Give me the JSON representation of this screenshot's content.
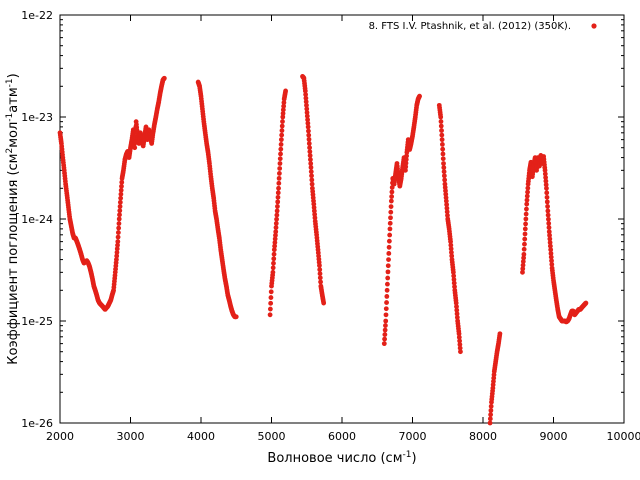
{
  "chart_data": {
    "type": "scatter",
    "title": "",
    "xlabel_text": "Волновое число (см",
    "xlabel_sup": "-1",
    "xlabel_end": ")",
    "ylabel_parts": [
      "Коэффициент поглощения (см",
      "2",
      "мол",
      "-1",
      "атм",
      "-1",
      ")"
    ],
    "xlim": [
      2000,
      10000
    ],
    "ylim": [
      1e-26,
      1e-22
    ],
    "yscale": "log",
    "grid": false,
    "legend_position": "top-right",
    "x_ticks": [
      "2000",
      "3000",
      "4000",
      "5000",
      "6000",
      "7000",
      "8000",
      "9000",
      "10000"
    ],
    "y_ticks": [
      "1e-26",
      "1e-25",
      "1e-24",
      "1e-23",
      "1e-22"
    ],
    "series": [
      {
        "name": "8. FTS I.V. Ptashnik, et al. (2012) (350K).",
        "color": "#e32119",
        "marker": "circle",
        "points": [
          [
            2000,
            7e-24
          ],
          [
            2020,
            5.5e-24
          ],
          [
            2040,
            4e-24
          ],
          [
            2060,
            3e-24
          ],
          [
            2080,
            2.2e-24
          ],
          [
            2100,
            1.7e-24
          ],
          [
            2120,
            1.3e-24
          ],
          [
            2140,
            1e-24
          ],
          [
            2160,
            8.5e-25
          ],
          [
            2180,
            7.2e-25
          ],
          [
            2200,
            6.5e-25
          ],
          [
            2220,
            6.5e-25
          ],
          [
            2240,
            6e-25
          ],
          [
            2260,
            5.5e-25
          ],
          [
            2280,
            5e-25
          ],
          [
            2300,
            4.5e-25
          ],
          [
            2320,
            4e-25
          ],
          [
            2340,
            3.7e-25
          ],
          [
            2360,
            3.8e-25
          ],
          [
            2380,
            3.9e-25
          ],
          [
            2400,
            3.7e-25
          ],
          [
            2420,
            3.4e-25
          ],
          [
            2440,
            3e-25
          ],
          [
            2460,
            2.6e-25
          ],
          [
            2480,
            2.2e-25
          ],
          [
            2500,
            2e-25
          ],
          [
            2520,
            1.8e-25
          ],
          [
            2540,
            1.6e-25
          ],
          [
            2560,
            1.5e-25
          ],
          [
            2580,
            1.45e-25
          ],
          [
            2600,
            1.4e-25
          ],
          [
            2620,
            1.35e-25
          ],
          [
            2640,
            1.3e-25
          ],
          [
            2660,
            1.35e-25
          ],
          [
            2680,
            1.4e-25
          ],
          [
            2700,
            1.5e-25
          ],
          [
            2720,
            1.6e-25
          ],
          [
            2740,
            1.8e-25
          ],
          [
            2760,
            2e-25
          ],
          [
            2780,
            2.8e-25
          ],
          [
            2800,
            4e-25
          ],
          [
            2820,
            6e-25
          ],
          [
            2840,
            1e-24
          ],
          [
            2860,
            1.6e-24
          ],
          [
            2880,
            2.5e-24
          ],
          [
            2900,
            3e-24
          ],
          [
            2920,
            3.8e-24
          ],
          [
            2940,
            4.3e-24
          ],
          [
            2960,
            4.6e-24
          ],
          [
            2980,
            4e-24
          ],
          [
            3000,
            5e-24
          ],
          [
            3020,
            6e-24
          ],
          [
            3040,
            7.5e-24
          ],
          [
            3060,
            5e-24
          ],
          [
            3080,
            9e-24
          ],
          [
            3100,
            6.5e-24
          ],
          [
            3120,
            5.5e-24
          ],
          [
            3140,
            7e-24
          ],
          [
            3160,
            6e-24
          ],
          [
            3180,
            5.2e-24
          ],
          [
            3200,
            6.5e-24
          ],
          [
            3220,
            8e-24
          ],
          [
            3240,
            6e-24
          ],
          [
            3260,
            7.5e-24
          ],
          [
            3280,
            6.5e-24
          ],
          [
            3300,
            5.5e-24
          ],
          [
            3320,
            7e-24
          ],
          [
            3340,
            8.5e-24
          ],
          [
            3360,
            1e-23
          ],
          [
            3380,
            1.2e-23
          ],
          [
            3400,
            1.4e-23
          ],
          [
            3420,
            1.7e-23
          ],
          [
            3440,
            2e-23
          ],
          [
            3460,
            2.3e-23
          ],
          [
            3480,
            2.4e-23
          ],
          [
            3960,
            2.2e-23
          ],
          [
            3980,
            2e-23
          ],
          [
            4000,
            1.6e-23
          ],
          [
            4020,
            1.2e-23
          ],
          [
            4040,
            9e-24
          ],
          [
            4060,
            7e-24
          ],
          [
            4080,
            5.5e-24
          ],
          [
            4100,
            4.5e-24
          ],
          [
            4120,
            3.5e-24
          ],
          [
            4140,
            2.6e-24
          ],
          [
            4160,
            2e-24
          ],
          [
            4180,
            1.6e-24
          ],
          [
            4200,
            1.2e-24
          ],
          [
            4220,
            1e-24
          ],
          [
            4240,
            8e-25
          ],
          [
            4260,
            6.5e-25
          ],
          [
            4280,
            5e-25
          ],
          [
            4300,
            4e-25
          ],
          [
            4320,
            3.2e-25
          ],
          [
            4340,
            2.6e-25
          ],
          [
            4360,
            2.2e-25
          ],
          [
            4380,
            1.8e-25
          ],
          [
            4400,
            1.6e-25
          ],
          [
            4420,
            1.4e-25
          ],
          [
            4440,
            1.25e-25
          ],
          [
            4460,
            1.15e-25
          ],
          [
            4480,
            1.1e-25
          ],
          [
            4500,
            1.1e-25
          ],
          [
            4980,
            1.15e-25
          ],
          [
            5000,
            2.2e-25
          ],
          [
            5020,
            3e-25
          ],
          [
            5040,
            5e-25
          ],
          [
            5060,
            7.5e-25
          ],
          [
            5080,
            1.2e-24
          ],
          [
            5100,
            2e-24
          ],
          [
            5120,
            3.5e-24
          ],
          [
            5140,
            6e-24
          ],
          [
            5160,
            1e-23
          ],
          [
            5180,
            1.5e-23
          ],
          [
            5200,
            1.8e-23
          ],
          [
            5440,
            2.5e-23
          ],
          [
            5460,
            2.4e-23
          ],
          [
            5480,
            1.8e-23
          ],
          [
            5500,
            1.2e-23
          ],
          [
            5520,
            8e-24
          ],
          [
            5540,
            5e-24
          ],
          [
            5560,
            3.2e-24
          ],
          [
            5580,
            2e-24
          ],
          [
            5600,
            1.4e-24
          ],
          [
            5620,
            9.5e-25
          ],
          [
            5640,
            7e-25
          ],
          [
            5660,
            5e-25
          ],
          [
            5680,
            3.5e-25
          ],
          [
            5700,
            2.2e-25
          ],
          [
            5720,
            1.8e-25
          ],
          [
            5740,
            1.5e-25
          ],
          [
            6600,
            6e-26
          ],
          [
            6620,
            1e-25
          ],
          [
            6640,
            2e-25
          ],
          [
            6660,
            4e-25
          ],
          [
            6680,
            8e-25
          ],
          [
            6700,
            1.5e-24
          ],
          [
            6720,
            2.5e-24
          ],
          [
            6740,
            2.2e-24
          ],
          [
            6760,
            2.8e-24
          ],
          [
            6780,
            3.5e-24
          ],
          [
            6800,
            2.6e-24
          ],
          [
            6820,
            2.1e-24
          ],
          [
            6840,
            2.5e-24
          ],
          [
            6860,
            3.2e-24
          ],
          [
            6880,
            4e-24
          ],
          [
            6900,
            3e-24
          ],
          [
            6920,
            4.5e-24
          ],
          [
            6940,
            6e-24
          ],
          [
            6960,
            4.8e-24
          ],
          [
            6980,
            5.5e-24
          ],
          [
            7000,
            6.5e-24
          ],
          [
            7020,
            8e-24
          ],
          [
            7040,
            1e-23
          ],
          [
            7060,
            1.3e-23
          ],
          [
            7080,
            1.5e-23
          ],
          [
            7100,
            1.6e-23
          ],
          [
            7380,
            1.3e-23
          ],
          [
            7400,
            1e-23
          ],
          [
            7420,
            6e-24
          ],
          [
            7440,
            3.5e-24
          ],
          [
            7460,
            2.2e-24
          ],
          [
            7480,
            1.5e-24
          ],
          [
            7500,
            1e-24
          ],
          [
            7520,
            8e-25
          ],
          [
            7540,
            6e-25
          ],
          [
            7560,
            4e-25
          ],
          [
            7580,
            3e-25
          ],
          [
            7600,
            2e-25
          ],
          [
            7620,
            1.5e-25
          ],
          [
            7640,
            1e-25
          ],
          [
            7660,
            7.5e-26
          ],
          [
            7680,
            5e-26
          ],
          [
            8100,
            1e-26
          ],
          [
            8120,
            1.6e-26
          ],
          [
            8140,
            2.2e-26
          ],
          [
            8160,
            3.2e-26
          ],
          [
            8180,
            4e-26
          ],
          [
            8200,
            5e-26
          ],
          [
            8220,
            6e-26
          ],
          [
            8240,
            7.5e-26
          ],
          [
            8560,
            3e-25
          ],
          [
            8580,
            4.5e-25
          ],
          [
            8600,
            8e-25
          ],
          [
            8620,
            1.4e-24
          ],
          [
            8640,
            2.2e-24
          ],
          [
            8660,
            3e-24
          ],
          [
            8680,
            3.6e-24
          ],
          [
            8700,
            2.6e-24
          ],
          [
            8720,
            3.4e-24
          ],
          [
            8740,
            4e-24
          ],
          [
            8760,
            3e-24
          ],
          [
            8780,
            4e-24
          ],
          [
            8800,
            3.3e-24
          ],
          [
            8820,
            4.2e-24
          ],
          [
            8840,
            3.5e-24
          ],
          [
            8860,
            4.1e-24
          ],
          [
            8880,
            3e-24
          ],
          [
            8900,
            2e-24
          ],
          [
            8920,
            1.2e-24
          ],
          [
            8940,
            7.5e-25
          ],
          [
            8960,
            5e-25
          ],
          [
            8980,
            3.3e-25
          ],
          [
            9000,
            2.5e-25
          ],
          [
            9020,
            2e-25
          ],
          [
            9040,
            1.6e-25
          ],
          [
            9060,
            1.3e-25
          ],
          [
            9080,
            1.1e-25
          ],
          [
            9100,
            1.05e-25
          ],
          [
            9120,
            1e-25
          ],
          [
            9140,
            1e-25
          ],
          [
            9160,
            1e-25
          ],
          [
            9180,
            9.8e-26
          ],
          [
            9200,
            1e-25
          ],
          [
            9220,
            1.05e-25
          ],
          [
            9240,
            1.15e-25
          ],
          [
            9260,
            1.25e-25
          ],
          [
            9280,
            1.25e-25
          ],
          [
            9300,
            1.15e-25
          ],
          [
            9320,
            1.2e-25
          ],
          [
            9340,
            1.25e-25
          ],
          [
            9360,
            1.3e-25
          ],
          [
            9380,
            1.3e-25
          ],
          [
            9400,
            1.35e-25
          ],
          [
            9420,
            1.4e-25
          ],
          [
            9440,
            1.45e-25
          ],
          [
            9460,
            1.5e-25
          ]
        ]
      }
    ]
  }
}
